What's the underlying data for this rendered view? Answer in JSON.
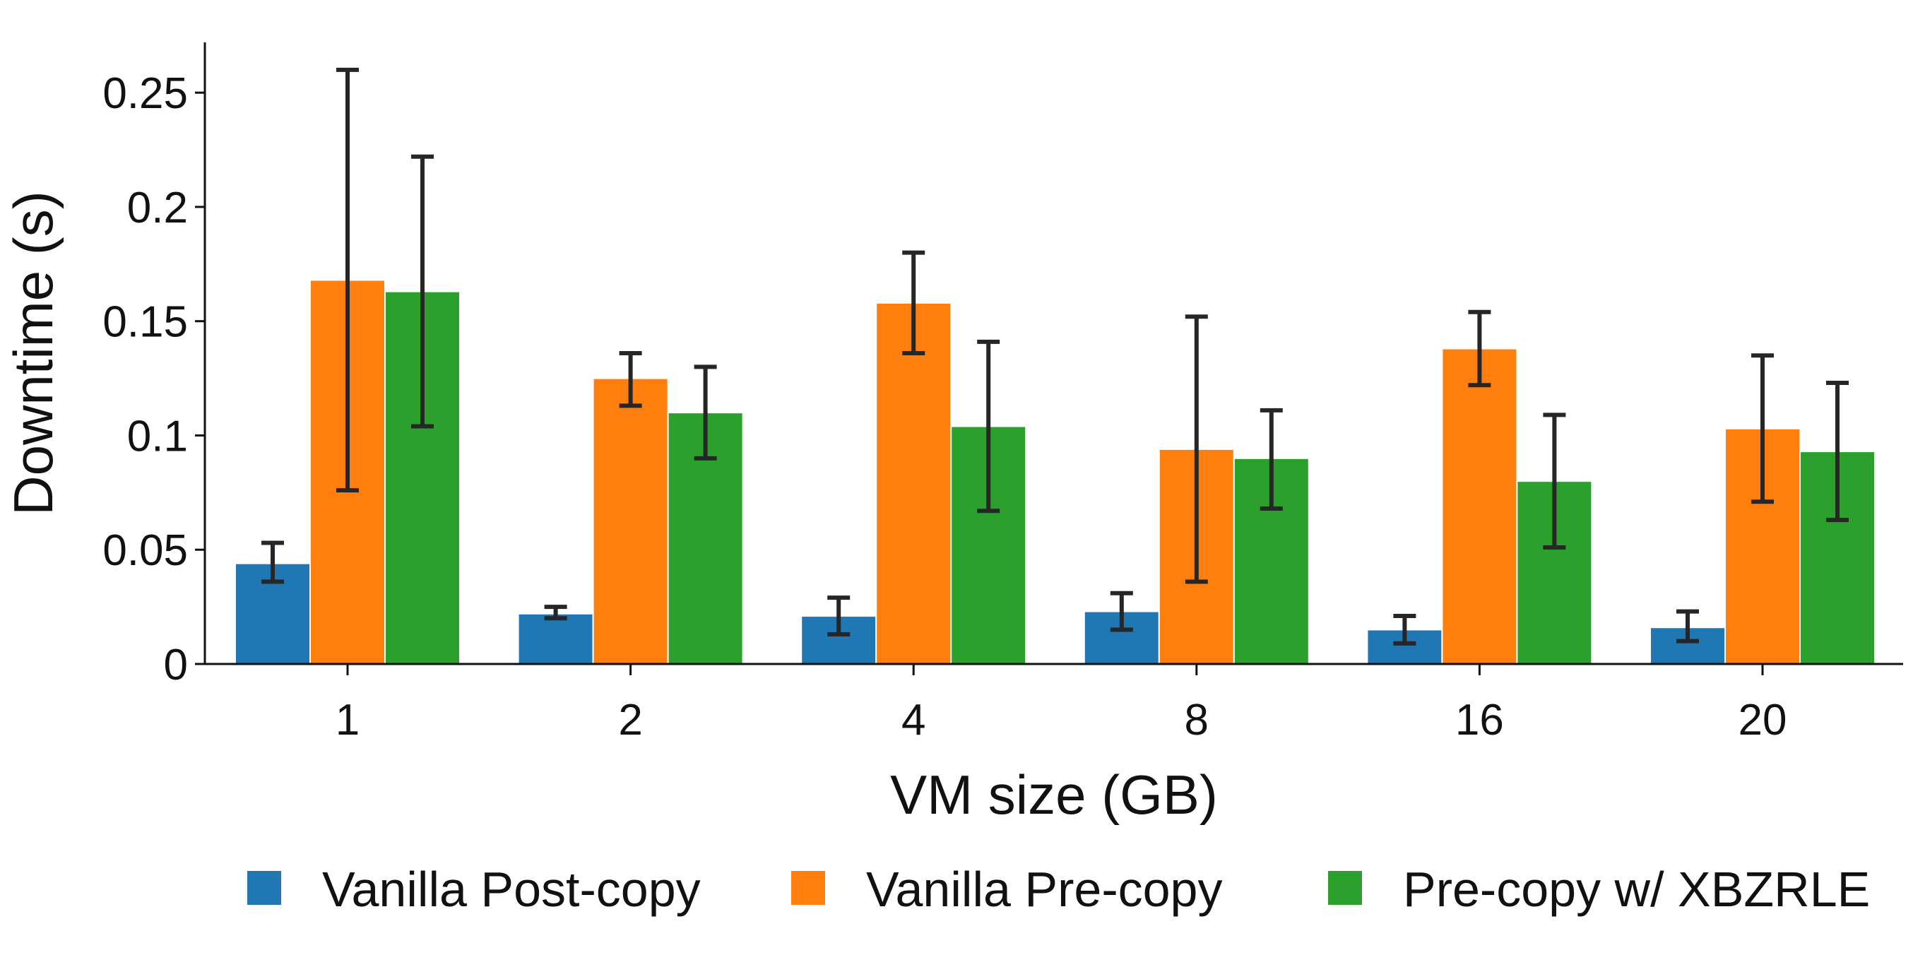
{
  "chart_data": {
    "type": "bar",
    "title": "",
    "xlabel": "VM size (GB)",
    "ylabel": "Downtime (s)",
    "ylim": [
      0,
      0.272
    ],
    "yticks": [
      {
        "value": 0,
        "label": "0"
      },
      {
        "value": 0.05,
        "label": "0.05"
      },
      {
        "value": 0.1,
        "label": "0.1"
      },
      {
        "value": 0.15,
        "label": "0.15"
      },
      {
        "value": 0.2,
        "label": "0.2"
      },
      {
        "value": 0.25,
        "label": "0.25"
      }
    ],
    "categories": [
      "1",
      "2",
      "4",
      "8",
      "16",
      "20"
    ],
    "series": [
      {
        "name": "Vanilla Post-copy",
        "color": "#1f77b4",
        "values": [
          0.044,
          0.022,
          0.021,
          0.023,
          0.015,
          0.016
        ],
        "err_low": [
          0.036,
          0.02,
          0.013,
          0.015,
          0.009,
          0.01
        ],
        "err_high": [
          0.053,
          0.025,
          0.029,
          0.031,
          0.021,
          0.023
        ]
      },
      {
        "name": "Vanilla Pre-copy",
        "color": "#ff7f0e",
        "values": [
          0.168,
          0.125,
          0.158,
          0.094,
          0.138,
          0.103
        ],
        "err_low": [
          0.076,
          0.113,
          0.136,
          0.036,
          0.122,
          0.071
        ],
        "err_high": [
          0.26,
          0.136,
          0.18,
          0.152,
          0.154,
          0.135
        ]
      },
      {
        "name": "Pre-copy w/ XBZRLE",
        "color": "#2ca02c",
        "values": [
          0.163,
          0.11,
          0.104,
          0.09,
          0.08,
          0.093
        ],
        "err_low": [
          0.104,
          0.09,
          0.067,
          0.068,
          0.051,
          0.063
        ],
        "err_high": [
          0.222,
          0.13,
          0.141,
          0.111,
          0.109,
          0.123
        ]
      }
    ],
    "error_bar_color": "#262626",
    "grid": false,
    "legend_position": "bottom-center"
  }
}
